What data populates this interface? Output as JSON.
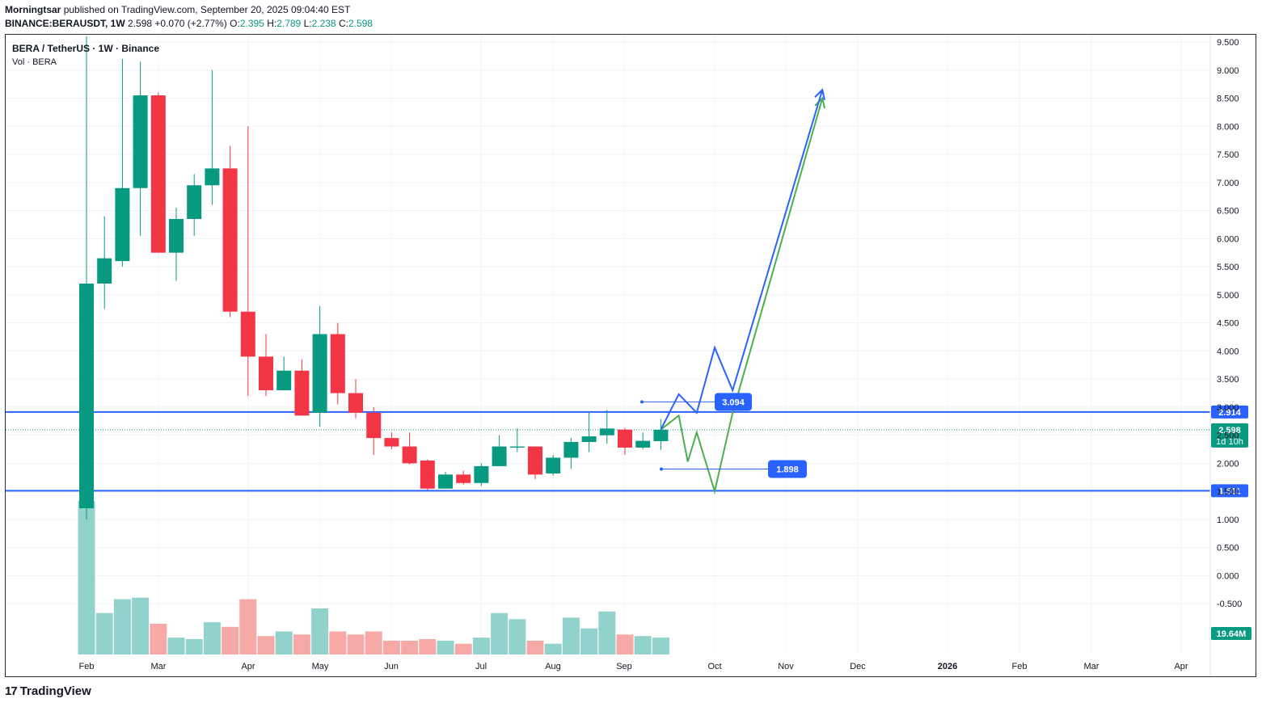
{
  "header": {
    "author": "Morningtsar",
    "published": "published on TradingView.com, September 20, 2025 09:04:40 EST",
    "symbol_line": "BINANCE:BERAUSDT, 1W",
    "last": "2.598",
    "change": "+0.070 (+2.77%)",
    "o_label": "O:",
    "o": "2.395",
    "h_label": "H:",
    "h": "2.789",
    "l_label": "L:",
    "l": "2.238",
    "c_label": "C:",
    "c": "2.598"
  },
  "legend": {
    "title": "BERA / TetherUS · 1W · Binance",
    "volume": "Vol · BERA"
  },
  "brand": {
    "logo": "17",
    "name": "TradingView"
  },
  "colors": {
    "up": "#089981",
    "down": "#f23645",
    "vol_up": "#92d2cc",
    "vol_down": "#f7a9a7",
    "level": "#2962ff",
    "green_path": "#4caf50",
    "blue_path": "#2962ff"
  },
  "chart_data": {
    "type": "candlestick",
    "timeframe": "1W",
    "ylim": [
      -1.0,
      9.5
    ],
    "y_ticks": [
      "9.500",
      "9.000",
      "8.500",
      "8.000",
      "7.500",
      "7.000",
      "6.500",
      "6.000",
      "5.500",
      "5.000",
      "4.500",
      "4.000",
      "3.500",
      "3.000",
      "2.500",
      "2.000",
      "1.500",
      "1.000",
      "0.500",
      "0.000",
      "-0.500"
    ],
    "x_labels": [
      "Feb",
      "Mar",
      "Apr",
      "May",
      "Jun",
      "Jul",
      "Aug",
      "Sep",
      "Oct",
      "Nov",
      "Dec",
      "2026",
      "Feb",
      "Mar",
      "Apr"
    ],
    "candles": [
      {
        "o": 1.2,
        "h": 9.6,
        "l": 1.0,
        "c": 5.2,
        "v": "1.0"
      },
      {
        "o": 5.2,
        "h": 6.4,
        "l": 4.75,
        "c": 5.65,
        "v": "0.27"
      },
      {
        "o": 5.6,
        "h": 9.2,
        "l": 5.5,
        "c": 6.9,
        "v": "0.36"
      },
      {
        "o": 6.9,
        "h": 9.15,
        "l": 6.05,
        "c": 8.55,
        "v": "0.37"
      },
      {
        "o": 8.55,
        "h": 8.6,
        "l": 5.75,
        "c": 5.75,
        "v": "0.20"
      },
      {
        "o": 5.75,
        "h": 6.55,
        "l": 5.25,
        "c": 6.35,
        "v": "0.11"
      },
      {
        "o": 6.35,
        "h": 7.15,
        "l": 6.05,
        "c": 6.95,
        "v": "0.10"
      },
      {
        "o": 6.95,
        "h": 9.0,
        "l": 6.6,
        "c": 7.25,
        "v": "0.21"
      },
      {
        "o": 7.25,
        "h": 7.65,
        "l": 4.6,
        "c": 4.7,
        "v": "0.18"
      },
      {
        "o": 4.7,
        "h": 8.0,
        "l": 3.2,
        "c": 3.9,
        "v": "0.36"
      },
      {
        "o": 3.9,
        "h": 4.3,
        "l": 3.2,
        "c": 3.3,
        "v": "0.12"
      },
      {
        "o": 3.3,
        "h": 3.9,
        "l": 3.3,
        "c": 3.65,
        "v": "0.15"
      },
      {
        "o": 3.65,
        "h": 3.85,
        "l": 2.85,
        "c": 2.85,
        "v": "0.13"
      },
      {
        "o": 2.9,
        "h": 4.8,
        "l": 2.65,
        "c": 4.3,
        "v": "0.30"
      },
      {
        "o": 4.3,
        "h": 4.5,
        "l": 3.05,
        "c": 3.25,
        "v": "0.15"
      },
      {
        "o": 3.25,
        "h": 3.5,
        "l": 2.8,
        "c": 2.9,
        "v": "0.13"
      },
      {
        "o": 2.9,
        "h": 3.0,
        "l": 2.15,
        "c": 2.45,
        "v": "0.15"
      },
      {
        "o": 2.45,
        "h": 2.55,
        "l": 2.25,
        "c": 2.3,
        "v": "0.09"
      },
      {
        "o": 2.3,
        "h": 2.55,
        "l": 1.98,
        "c": 2.0,
        "v": "0.09"
      },
      {
        "o": 2.05,
        "h": 2.07,
        "l": 1.52,
        "c": 1.55,
        "v": "0.10"
      },
      {
        "o": 1.55,
        "h": 1.85,
        "l": 1.55,
        "c": 1.8,
        "v": "0.09"
      },
      {
        "o": 1.8,
        "h": 1.87,
        "l": 1.62,
        "c": 1.65,
        "v": "0.07"
      },
      {
        "o": 1.65,
        "h": 2.0,
        "l": 1.6,
        "c": 1.95,
        "v": "0.11"
      },
      {
        "o": 1.95,
        "h": 2.5,
        "l": 1.95,
        "c": 2.3,
        "v": "0.27"
      },
      {
        "o": 2.28,
        "h": 2.62,
        "l": 2.2,
        "c": 2.3,
        "v": "0.23"
      },
      {
        "o": 2.3,
        "h": 2.3,
        "l": 1.72,
        "c": 1.8,
        "v": "0.09"
      },
      {
        "o": 1.82,
        "h": 2.15,
        "l": 1.78,
        "c": 2.1,
        "v": "0.07"
      },
      {
        "o": 2.1,
        "h": 2.45,
        "l": 1.9,
        "c": 2.38,
        "v": "0.24"
      },
      {
        "o": 2.38,
        "h": 2.9,
        "l": 2.2,
        "c": 2.48,
        "v": "0.17"
      },
      {
        "o": 2.5,
        "h": 2.95,
        "l": 2.35,
        "c": 2.62,
        "v": "0.28"
      },
      {
        "o": 2.6,
        "h": 2.63,
        "l": 2.15,
        "c": 2.28,
        "v": "0.13"
      },
      {
        "o": 2.28,
        "h": 2.55,
        "l": 2.25,
        "c": 2.4,
        "v": "0.12"
      },
      {
        "o": 2.395,
        "h": 2.789,
        "l": 2.238,
        "c": 2.598,
        "v": "0.11"
      }
    ],
    "volume_last_label": "19.64M",
    "levels": [
      {
        "value": 2.914,
        "label": "2.914"
      },
      {
        "value": 1.511,
        "label": "1.511"
      }
    ],
    "current_price": {
      "value": 2.598,
      "label": "2.598",
      "countdown": "1d 10h"
    },
    "annotations": [
      {
        "label": "3.094",
        "value": 3.094
      },
      {
        "label": "1.898",
        "value": 1.898
      }
    ],
    "projection_blue": [
      [
        0,
        2.6
      ],
      [
        1,
        3.23
      ],
      [
        2,
        2.9
      ],
      [
        3,
        4.06
      ],
      [
        4,
        3.3
      ],
      [
        9,
        8.65
      ]
    ],
    "projection_green": [
      [
        0,
        2.6
      ],
      [
        1,
        2.85
      ],
      [
        1.5,
        2.03
      ],
      [
        2,
        2.55
      ],
      [
        3,
        1.5
      ],
      [
        4,
        2.9
      ],
      [
        9,
        8.5
      ]
    ]
  }
}
